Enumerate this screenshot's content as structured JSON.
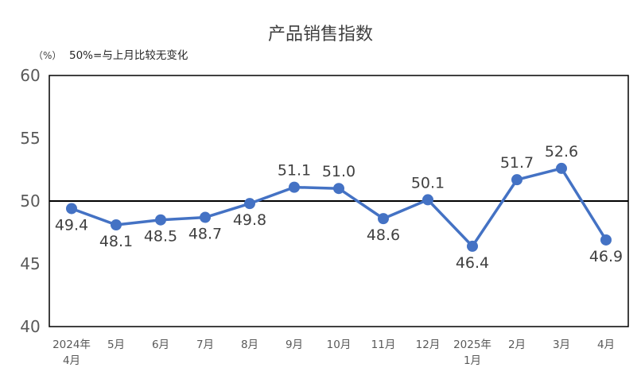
{
  "chart_data": {
    "type": "line",
    "title": "产品销售指数",
    "unit": "（%）",
    "note": "50%=与上月比较无变化",
    "categories": [
      [
        "2024年",
        "4月"
      ],
      [
        "5月"
      ],
      [
        "6月"
      ],
      [
        "7月"
      ],
      [
        "8月"
      ],
      [
        "9月"
      ],
      [
        "10月"
      ],
      [
        "11月"
      ],
      [
        "12月"
      ],
      [
        "2025年",
        "1月"
      ],
      [
        "2月"
      ],
      [
        "3月"
      ],
      [
        "4月"
      ]
    ],
    "series": [
      {
        "values": [
          49.4,
          48.1,
          48.5,
          48.7,
          49.8,
          51.1,
          51.0,
          48.6,
          50.1,
          46.4,
          51.7,
          52.6,
          46.9
        ],
        "labels": [
          "49.4",
          "48.1",
          "48.5",
          "48.7",
          "49.8",
          "51.1",
          "51.0",
          "48.6",
          "50.1",
          "46.4",
          "51.7",
          "52.6",
          "46.9"
        ],
        "label_position": [
          "below",
          "below",
          "below",
          "below",
          "below",
          "above",
          "above",
          "below",
          "above",
          "below",
          "above",
          "above",
          "below"
        ]
      }
    ],
    "ylim": [
      40,
      60
    ],
    "yticks": [
      "40",
      "45",
      "50",
      "55",
      "60"
    ],
    "reference_line": 50,
    "grid": false,
    "legend": "none",
    "colors": {
      "line": "#4472C4",
      "marker": "#4472C4",
      "axis": "#000000",
      "reference": "#000000"
    }
  }
}
